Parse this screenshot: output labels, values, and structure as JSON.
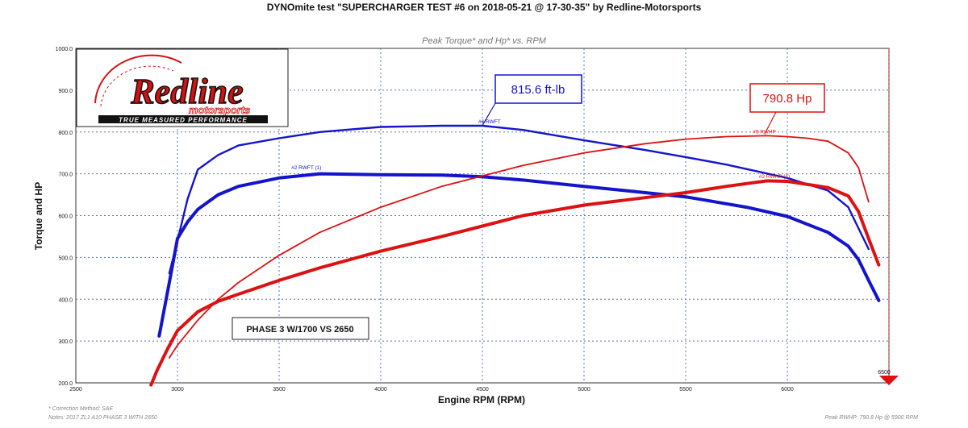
{
  "header": {
    "title": "DYNOmite test \"SUPERCHARGER TEST #6 on 2018-05-21 @ 17-30-35\" by Redline-Motorsports"
  },
  "logo": {
    "brand": "Redline",
    "sub": "motorsports",
    "tagline": "TRUE MEASURED PERFORMANCE"
  },
  "footer": {
    "correction": "* Correction Method: SAE",
    "notes": "Notes: 2017 ZL1 A10 PHASE 3 WITH 2650",
    "peak": "Peak RWHP: 790.8 Hp @ 5900 RPM"
  },
  "colors": {
    "torque": "#1414cc",
    "hp": "#dd1111",
    "grid": "#5a74b0",
    "marker": "#e01010"
  },
  "chart_data": {
    "type": "line",
    "title": "Peak Torque* and Hp* vs. RPM",
    "xlabel": "Engine RPM (RPM)",
    "ylabel": "Torque and HP",
    "xlim": [
      2500,
      6500
    ],
    "ylim": [
      200,
      1000
    ],
    "x_ticks": [
      2500,
      3000,
      3500,
      4000,
      4500,
      5000,
      5500,
      6000,
      6500
    ],
    "y_ticks": [
      200,
      300,
      400,
      500,
      600,
      700,
      800,
      900,
      1000
    ],
    "x_tick_labels": [
      "2500",
      "3000",
      "3500",
      "4000",
      "4500",
      "5000",
      "5500",
      "6000",
      "6500"
    ],
    "y_tick_labels": [
      "200.0",
      "300.0",
      "400.0",
      "500.0",
      "600.0",
      "700.0",
      "800.0",
      "900.0",
      "1000.0"
    ],
    "grid": true,
    "end_marker_label": "6500",
    "series": [
      {
        "name": "#6 RWFT",
        "color": "#1414cc",
        "width": 2.4,
        "x": [
          2960,
          3000,
          3050,
          3100,
          3200,
          3300,
          3500,
          3700,
          4000,
          4300,
          4500,
          4700,
          5000,
          5300,
          5500,
          5700,
          6000,
          6200,
          6300,
          6400
        ],
        "y": [
          462,
          540,
          640,
          710,
          745,
          768,
          785,
          800,
          812,
          815,
          815,
          805,
          780,
          757,
          740,
          722,
          690,
          660,
          620,
          520
        ]
      },
      {
        "name": "#2 RWFT (1)",
        "color": "#1414cc",
        "width": 4,
        "x": [
          2910,
          2960,
          3000,
          3050,
          3100,
          3200,
          3300,
          3500,
          3700,
          4000,
          4300,
          4500,
          4700,
          5000,
          5200,
          5500,
          5800,
          6000,
          6200,
          6300,
          6350,
          6400,
          6450
        ],
        "y": [
          312,
          440,
          545,
          585,
          615,
          650,
          670,
          690,
          700,
          698,
          697,
          693,
          685,
          670,
          660,
          645,
          620,
          598,
          560,
          527,
          495,
          445,
          397
        ]
      },
      {
        "name": "#6 RWHP",
        "color": "#dd1111",
        "width": 1.8,
        "x": [
          2960,
          3000,
          3100,
          3200,
          3300,
          3500,
          3700,
          4000,
          4300,
          4500,
          4700,
          5000,
          5300,
          5500,
          5700,
          5900,
          6000,
          6100,
          6200,
          6300,
          6350,
          6400
        ],
        "y": [
          260,
          290,
          350,
          400,
          440,
          505,
          560,
          620,
          670,
          695,
          720,
          750,
          772,
          783,
          789,
          791,
          789,
          785,
          778,
          750,
          715,
          633
        ]
      },
      {
        "name": "#2 RWHP (1)",
        "color": "#dd1111",
        "width": 4,
        "x": [
          2870,
          2900,
          2950,
          3000,
          3100,
          3200,
          3300,
          3500,
          3700,
          4000,
          4300,
          4500,
          4700,
          5000,
          5200,
          5500,
          5700,
          5900,
          6000,
          6200,
          6300,
          6350,
          6400,
          6450
        ],
        "y": [
          195,
          230,
          280,
          325,
          370,
          395,
          412,
          445,
          475,
          515,
          550,
          575,
          600,
          625,
          637,
          655,
          670,
          683,
          682,
          667,
          647,
          610,
          545,
          482
        ]
      }
    ],
    "series_labels": [
      {
        "text": "#6 RWFT",
        "x": 4480,
        "y": 817,
        "color": "#1414cc"
      },
      {
        "text": "#2 RWFT (1)",
        "x": 3560,
        "y": 707,
        "color": "#1414cc"
      },
      {
        "text": "#6 RWHP",
        "x": 5830,
        "y": 793,
        "color": "#dd1111"
      },
      {
        "text": "#2 RWHP (1)",
        "x": 5860,
        "y": 686,
        "color": "#dd1111"
      }
    ],
    "annotations": [
      {
        "text": "815.6 ft-lb",
        "color": "#1414cc",
        "pointer_x": 4500,
        "pointer_y": 815.6
      },
      {
        "text": "790.8 Hp",
        "color": "#dd1111",
        "pointer_x": 5900,
        "pointer_y": 790.8
      },
      {
        "text": "PHASE 3 W/1700 VS 2650",
        "color": "#111111"
      }
    ]
  }
}
